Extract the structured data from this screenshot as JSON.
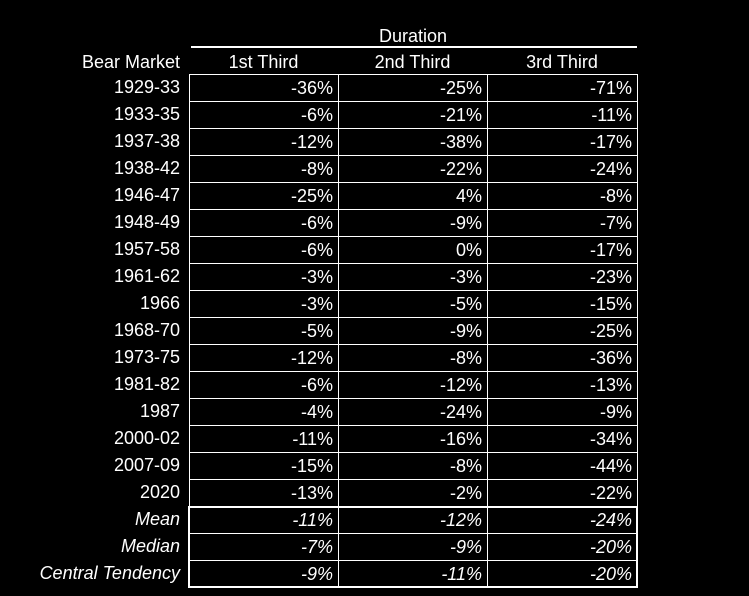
{
  "chart_data": {
    "type": "table",
    "super_header": "Duration",
    "row_header": "Bear Market",
    "columns": [
      "1st Third",
      "2nd Third",
      "3rd Third"
    ],
    "rows": [
      {
        "label": "1929-33",
        "values": [
          "-36%",
          "-25%",
          "-71%"
        ]
      },
      {
        "label": "1933-35",
        "values": [
          "-6%",
          "-21%",
          "-11%"
        ]
      },
      {
        "label": "1937-38",
        "values": [
          "-12%",
          "-38%",
          "-17%"
        ]
      },
      {
        "label": "1938-42",
        "values": [
          "-8%",
          "-22%",
          "-24%"
        ]
      },
      {
        "label": "1946-47",
        "values": [
          "-25%",
          "4%",
          "-8%"
        ]
      },
      {
        "label": "1948-49",
        "values": [
          "-6%",
          "-9%",
          "-7%"
        ]
      },
      {
        "label": "1957-58",
        "values": [
          "-6%",
          "0%",
          "-17%"
        ]
      },
      {
        "label": "1961-62",
        "values": [
          "-3%",
          "-3%",
          "-23%"
        ]
      },
      {
        "label": "1966",
        "values": [
          "-3%",
          "-5%",
          "-15%"
        ]
      },
      {
        "label": "1968-70",
        "values": [
          "-5%",
          "-9%",
          "-25%"
        ]
      },
      {
        "label": "1973-75",
        "values": [
          "-12%",
          "-8%",
          "-36%"
        ]
      },
      {
        "label": "1981-82",
        "values": [
          "-6%",
          "-12%",
          "-13%"
        ]
      },
      {
        "label": "1987",
        "values": [
          "-4%",
          "-24%",
          "-9%"
        ]
      },
      {
        "label": "2000-02",
        "values": [
          "-11%",
          "-16%",
          "-34%"
        ]
      },
      {
        "label": "2007-09",
        "values": [
          "-15%",
          "-8%",
          "-44%"
        ]
      },
      {
        "label": "2020",
        "values": [
          "-13%",
          "-2%",
          "-22%"
        ]
      }
    ],
    "summary_rows": [
      {
        "label": "Mean",
        "values": [
          "-11%",
          "-12%",
          "-24%"
        ]
      },
      {
        "label": "Median",
        "values": [
          "-7%",
          "-9%",
          "-20%"
        ]
      },
      {
        "label": "Central Tendency",
        "values": [
          "-9%",
          "-11%",
          "-20%"
        ]
      }
    ]
  },
  "colors": {
    "background": "#000000",
    "text": "#ffffff",
    "grid": "#ffffff"
  }
}
